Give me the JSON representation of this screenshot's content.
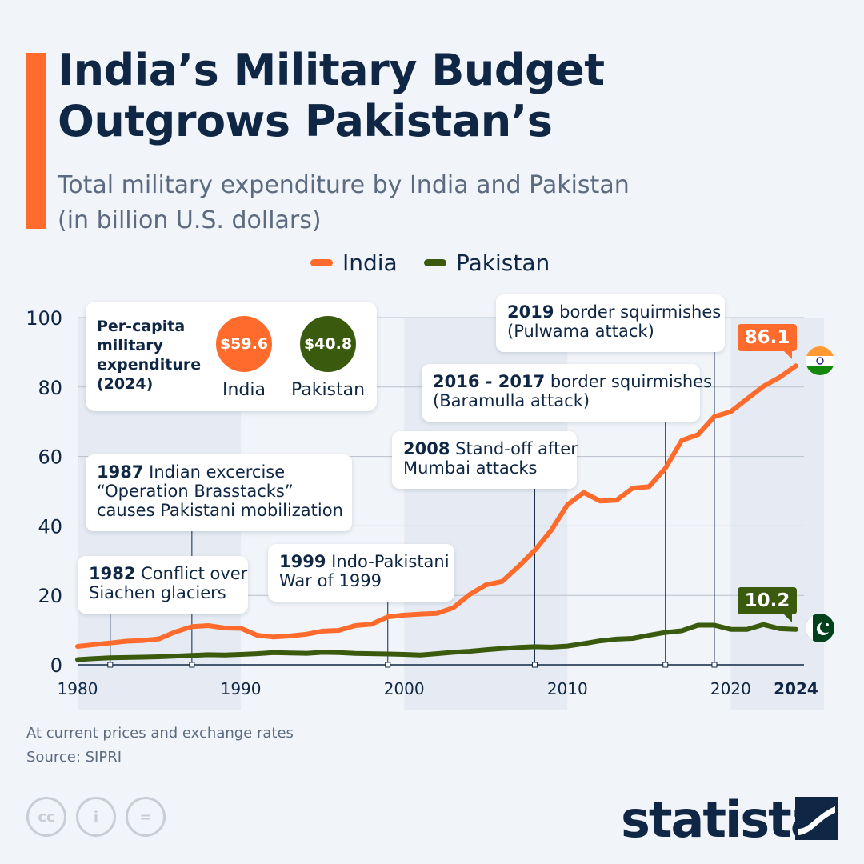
{
  "title_lines": [
    "India’s Military Budget",
    "Outgrows Pakistan’s"
  ],
  "subtitle_lines": [
    "Total military expenditure by India and Pakistan",
    "(in billion U.S. dollars)"
  ],
  "colors": {
    "india": "#ff6b2c",
    "pakistan": "#3a5a0e",
    "accent": "#ff6b2c",
    "navy": "#0f2744"
  },
  "legend": {
    "india": "India",
    "pakistan": "Pakistan"
  },
  "per_capita": {
    "heading_lines": [
      "Per-capita",
      "military",
      "expenditure",
      "(2024)"
    ],
    "india_value": "$59.6",
    "india_label": "India",
    "pakistan_value": "$40.8",
    "pakistan_label": "Pakistan"
  },
  "annotations": [
    {
      "year_bold": "1982",
      "lines": [
        "Conflict over",
        "Siachen glaciers"
      ]
    },
    {
      "year_bold": "1987",
      "lines": [
        "Indian excercise",
        "“Operation Brasstacks”",
        "causes Pakistani mobilization"
      ]
    },
    {
      "year_bold": "1999",
      "lines": [
        "Indo-Pakistani",
        "War of 1999"
      ]
    },
    {
      "year_bold": "2008",
      "lines": [
        "Stand-off after",
        "Mumbai attacks"
      ]
    },
    {
      "year_bold": "2016 - 2017",
      "lines": [
        "border squirmishes",
        "(Baramulla attack)"
      ]
    },
    {
      "year_bold": "2019",
      "lines": [
        "border squirmishes",
        "(Pulwama attack)"
      ]
    }
  ],
  "end_labels": {
    "india": "86.1",
    "pakistan": "10.2"
  },
  "chart_data": {
    "type": "line",
    "title": "India’s Military Budget Outgrows Pakistan’s",
    "subtitle": "Total military expenditure by India and Pakistan (in billion U.S. dollars)",
    "xlabel": "",
    "ylabel": "",
    "x_ticks": [
      "1980",
      "1990",
      "2000",
      "2010",
      "2020",
      "2024"
    ],
    "y_ticks": [
      "0",
      "20",
      "40",
      "60",
      "80",
      "100"
    ],
    "ylim": [
      0,
      100
    ],
    "xlim": [
      1980,
      2024
    ],
    "grid": true,
    "legend_position": "top-center",
    "annotation_years": [
      1982,
      1987,
      1999,
      2008,
      2016,
      2019
    ],
    "x": [
      1980,
      1981,
      1982,
      1983,
      1984,
      1985,
      1986,
      1987,
      1988,
      1989,
      1990,
      1991,
      1992,
      1993,
      1994,
      1995,
      1996,
      1997,
      1998,
      1999,
      2000,
      2001,
      2002,
      2003,
      2004,
      2005,
      2006,
      2007,
      2008,
      2009,
      2010,
      2011,
      2012,
      2013,
      2014,
      2015,
      2016,
      2017,
      2018,
      2019,
      2020,
      2021,
      2022,
      2023,
      2024
    ],
    "series": [
      {
        "name": "India",
        "values": [
          5.3,
          5.8,
          6.3,
          6.8,
          7.0,
          7.5,
          9.5,
          11.0,
          11.3,
          10.6,
          10.5,
          8.5,
          8.0,
          8.3,
          8.8,
          9.7,
          9.9,
          11.3,
          11.7,
          13.8,
          14.3,
          14.6,
          14.8,
          16.4,
          20.2,
          23.0,
          24.0,
          28.3,
          33.0,
          38.7,
          46.1,
          49.6,
          47.2,
          47.4,
          50.9,
          51.3,
          56.6,
          64.6,
          66.3,
          71.5,
          72.9,
          76.6,
          80.2,
          82.8,
          86.1
        ]
      },
      {
        "name": "Pakistan",
        "values": [
          1.5,
          1.8,
          2.0,
          2.1,
          2.2,
          2.3,
          2.5,
          2.7,
          2.9,
          2.8,
          3.0,
          3.2,
          3.5,
          3.4,
          3.3,
          3.6,
          3.5,
          3.3,
          3.2,
          3.1,
          3.0,
          2.8,
          3.2,
          3.6,
          3.9,
          4.3,
          4.7,
          5.0,
          5.2,
          5.1,
          5.4,
          6.1,
          6.9,
          7.4,
          7.6,
          8.5,
          9.3,
          9.8,
          11.4,
          11.4,
          10.2,
          10.2,
          11.6,
          10.4,
          10.2
        ]
      }
    ]
  },
  "notes": [
    "At current prices and exchange rates",
    "Source: SIPRI"
  ],
  "license_icons": [
    "cc",
    "i",
    "="
  ],
  "brand": "statista"
}
